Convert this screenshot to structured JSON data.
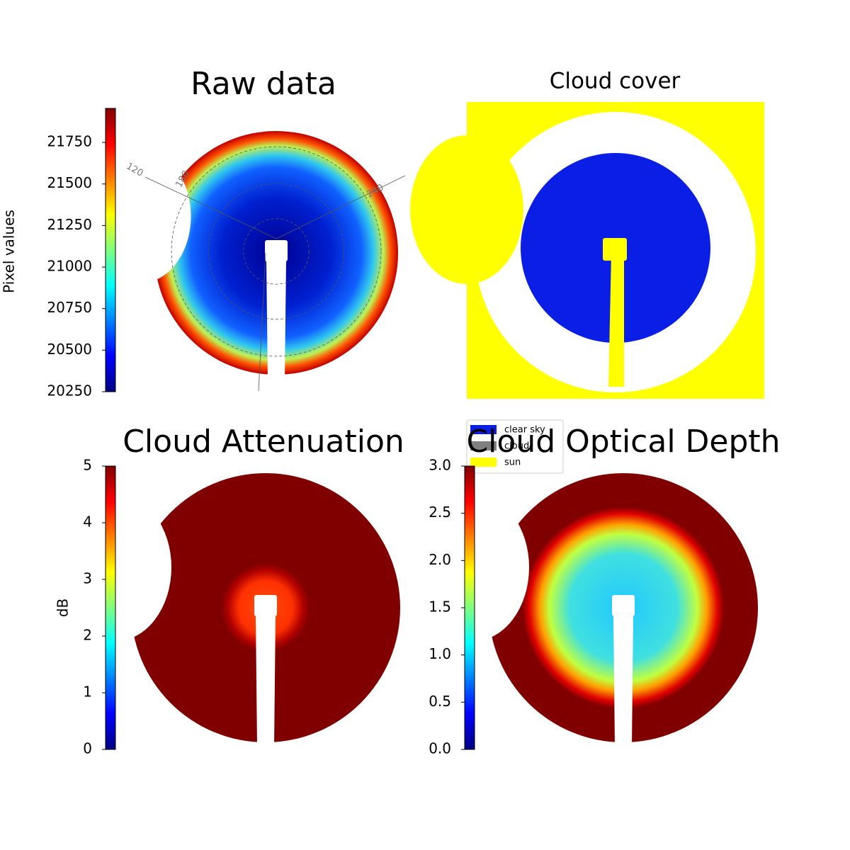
{
  "chart_data": [
    {
      "type": "image",
      "title": "Raw data",
      "colorbar": {
        "label": "Pixel values",
        "lim": [
          20250,
          21955
        ],
        "ticks": [
          20250,
          20500,
          20750,
          21000,
          21250,
          21500,
          21750
        ]
      },
      "annotations": [
        "120",
        "180",
        "240"
      ]
    },
    {
      "type": "image",
      "title": "Cloud cover",
      "legend": "lower left",
      "series": [
        {
          "name": "clear sky",
          "color": "#0a1ee6"
        },
        {
          "name": "cloud",
          "color": "#808080"
        },
        {
          "name": "sun",
          "color": "#ffff00"
        }
      ]
    },
    {
      "type": "image",
      "title": "Cloud Attenuation",
      "colorbar": {
        "label": "dB",
        "lim": [
          0,
          5
        ],
        "ticks": [
          0,
          1,
          2,
          3,
          4,
          5
        ]
      }
    },
    {
      "type": "image",
      "title": "Cloud Optical Depth",
      "colorbar": {
        "lim": [
          0,
          3
        ],
        "ticks": [
          {
            "value": 0,
            "label": "0.0"
          },
          0.5,
          {
            "value": 1,
            "label": "1.0"
          },
          1.5,
          {
            "value": 2,
            "label": "2.0"
          },
          2.5,
          {
            "value": 3,
            "label": "3.0"
          }
        ]
      }
    }
  ]
}
